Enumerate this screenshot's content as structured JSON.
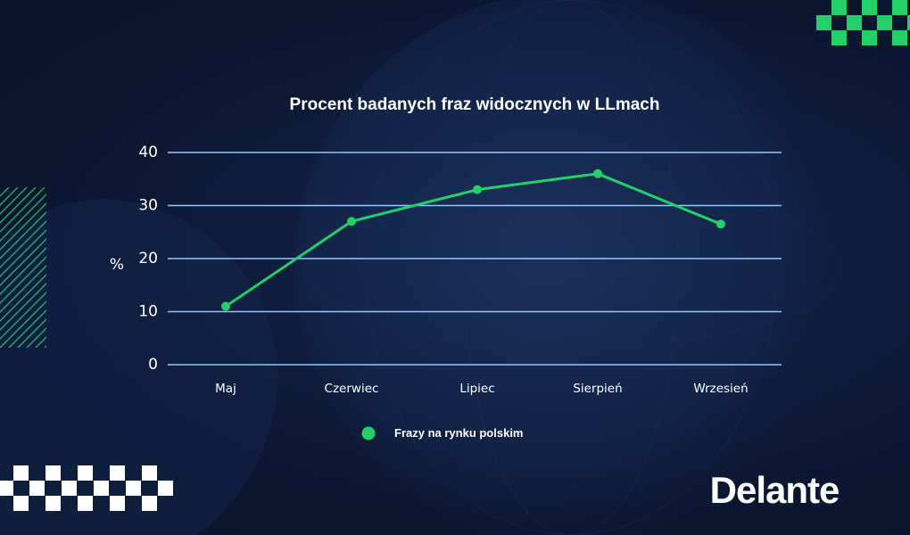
{
  "brand": {
    "logo_text": "Delante"
  },
  "colors": {
    "background": "#0b1630",
    "accent_green": "#22d06a",
    "gridline": "#8fc8ff",
    "text": "#ffffff"
  },
  "chart_data": {
    "type": "line",
    "title": "Procent badanych fraz widocznych w LLmach",
    "xlabel": "",
    "ylabel": "%",
    "categories": [
      "Maj",
      "Czerwiec",
      "Lipiec",
      "Sierpień",
      "Wrzesień"
    ],
    "yticks": [
      0,
      10,
      20,
      30,
      40
    ],
    "ylim": [
      0,
      40
    ],
    "grid": true,
    "legend_position": "bottom-center",
    "series": [
      {
        "name": "Frazy na rynku polskim",
        "values": [
          11,
          27,
          33,
          36,
          26.5
        ],
        "color": "#22d06a"
      }
    ]
  }
}
